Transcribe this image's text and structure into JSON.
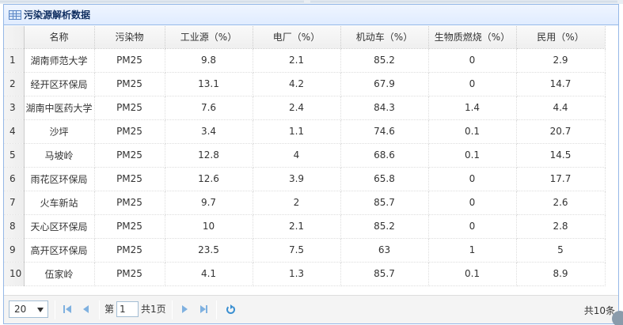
{
  "panel": {
    "title": "污染源解析数据"
  },
  "table": {
    "headers": [
      "名称",
      "污染物",
      "工业源（%）",
      "电厂（%）",
      "机动车（%）",
      "生物质燃烧（%）",
      "民用（%）"
    ],
    "rows": [
      {
        "rn": "1",
        "cells": [
          "湖南师范大学",
          "PM25",
          "9.8",
          "2.1",
          "85.2",
          "0",
          "2.9"
        ]
      },
      {
        "rn": "2",
        "cells": [
          "经开区环保局",
          "PM25",
          "13.1",
          "4.2",
          "67.9",
          "0",
          "14.7"
        ]
      },
      {
        "rn": "3",
        "cells": [
          "湖南中医药大学",
          "PM25",
          "7.6",
          "2.4",
          "84.3",
          "1.4",
          "4.4"
        ]
      },
      {
        "rn": "4",
        "cells": [
          "沙坪",
          "PM25",
          "3.4",
          "1.1",
          "74.6",
          "0.1",
          "20.7"
        ]
      },
      {
        "rn": "5",
        "cells": [
          "马坡岭",
          "PM25",
          "12.8",
          "4",
          "68.6",
          "0.1",
          "14.5"
        ]
      },
      {
        "rn": "6",
        "cells": [
          "雨花区环保局",
          "PM25",
          "12.6",
          "3.9",
          "65.8",
          "0",
          "17.7"
        ]
      },
      {
        "rn": "7",
        "cells": [
          "火车新站",
          "PM25",
          "9.7",
          "2",
          "85.7",
          "0",
          "2.6"
        ]
      },
      {
        "rn": "8",
        "cells": [
          "天心区环保局",
          "PM25",
          "10",
          "2.1",
          "85.2",
          "0",
          "2.8"
        ]
      },
      {
        "rn": "9",
        "cells": [
          "高开区环保局",
          "PM25",
          "23.5",
          "7.5",
          "63",
          "1",
          "5"
        ]
      },
      {
        "rn": "10",
        "cells": [
          "伍家岭",
          "PM25",
          "4.1",
          "1.3",
          "85.7",
          "0.1",
          "8.9"
        ]
      }
    ]
  },
  "pager": {
    "page_size": "20",
    "page_prefix": "第",
    "page_value": "1",
    "page_total": "共1页",
    "total": "共10条"
  },
  "icons": {
    "title": "grid-table-icon",
    "first": "first-page-icon",
    "prev": "prev-page-icon",
    "next": "next-page-icon",
    "last": "last-page-icon",
    "refresh": "refresh-icon"
  },
  "colors": {
    "panel_border": "#95b8e7",
    "title_text": "#0e2d5f",
    "pager_icon": "#7fb1e0"
  }
}
